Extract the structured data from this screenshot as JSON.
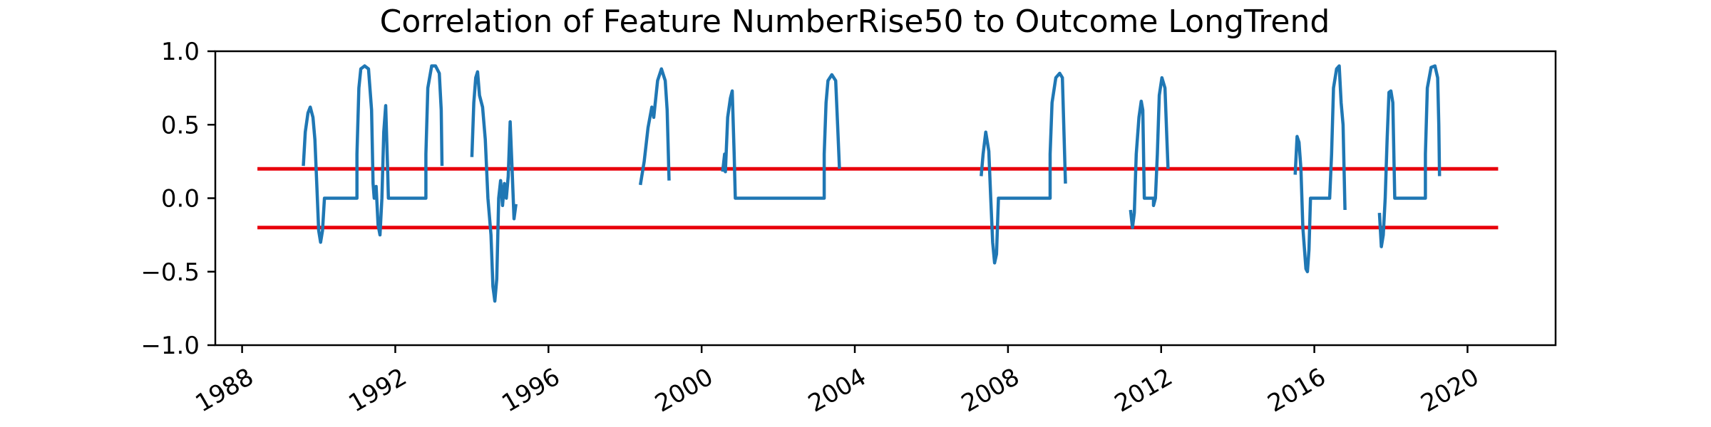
{
  "chart_data": {
    "type": "line",
    "title": "Correlation of Feature NumberRise50 to Outcome LongTrend",
    "xlabel": "",
    "ylabel": "",
    "xlim": [
      1987.3,
      2022.3
    ],
    "ylim": [
      -1.0,
      1.0
    ],
    "x_ticks": [
      1988,
      1992,
      1996,
      2000,
      2004,
      2008,
      2012,
      2016,
      2020
    ],
    "x_tick_labels": [
      "1988",
      "1992",
      "1996",
      "2000",
      "2004",
      "2008",
      "2012",
      "2016",
      "2020"
    ],
    "y_ticks": [
      1.0,
      0.5,
      0.0,
      -0.5,
      -1.0
    ],
    "y_tick_labels": [
      "1.0",
      "0.5",
      "0.0",
      "−0.5",
      "−1.0"
    ],
    "grid": false,
    "threshold_lines": [
      {
        "y": 0.2,
        "x_range": [
          1988.4,
          2020.8
        ],
        "color": "#e8000b"
      },
      {
        "y": -0.2,
        "x_range": [
          1988.4,
          2020.8
        ],
        "color": "#e8000b"
      }
    ],
    "series": [
      {
        "color": "#1f77b4",
        "segments": [
          [
            [
              1989.6,
              0.22
            ],
            [
              1989.65,
              0.45
            ],
            [
              1989.72,
              0.58
            ],
            [
              1989.78,
              0.62
            ],
            [
              1989.85,
              0.55
            ],
            [
              1989.9,
              0.4
            ],
            [
              1989.95,
              0.1
            ],
            [
              1990.0,
              -0.22
            ],
            [
              1990.05,
              -0.3
            ],
            [
              1990.1,
              -0.22
            ],
            [
              1990.15,
              0.0
            ],
            [
              1990.5,
              0.0
            ],
            [
              1991.0,
              0.0
            ],
            [
              1991.0,
              0.3
            ],
            [
              1991.05,
              0.75
            ],
            [
              1991.1,
              0.88
            ],
            [
              1991.2,
              0.9
            ],
            [
              1991.3,
              0.88
            ],
            [
              1991.38,
              0.6
            ],
            [
              1991.42,
              0.1
            ],
            [
              1991.45,
              0.0
            ],
            [
              1991.5,
              0.08
            ],
            [
              1991.55,
              -0.18
            ],
            [
              1991.6,
              -0.25
            ],
            [
              1991.65,
              0.0
            ],
            [
              1991.7,
              0.45
            ],
            [
              1991.75,
              0.63
            ],
            [
              1991.8,
              0.2
            ],
            [
              1991.82,
              0.0
            ],
            [
              1992.3,
              0.0
            ],
            [
              1992.8,
              0.0
            ],
            [
              1992.8,
              0.3
            ],
            [
              1992.85,
              0.75
            ],
            [
              1992.95,
              0.9
            ],
            [
              1993.05,
              0.9
            ],
            [
              1993.15,
              0.85
            ],
            [
              1993.2,
              0.6
            ],
            [
              1993.22,
              0.22
            ]
          ],
          [
            [
              1994.0,
              0.28
            ],
            [
              1994.05,
              0.65
            ],
            [
              1994.1,
              0.82
            ],
            [
              1994.15,
              0.86
            ],
            [
              1994.2,
              0.7
            ],
            [
              1994.28,
              0.62
            ],
            [
              1994.35,
              0.4
            ],
            [
              1994.42,
              0.0
            ],
            [
              1994.5,
              -0.25
            ],
            [
              1994.55,
              -0.6
            ],
            [
              1994.6,
              -0.7
            ],
            [
              1994.65,
              -0.55
            ],
            [
              1994.7,
              0.0
            ],
            [
              1994.75,
              0.12
            ],
            [
              1994.8,
              -0.05
            ],
            [
              1994.85,
              0.1
            ],
            [
              1994.9,
              0.0
            ],
            [
              1994.95,
              0.15
            ],
            [
              1995.0,
              0.52
            ],
            [
              1995.05,
              0.2
            ],
            [
              1995.1,
              -0.14
            ],
            [
              1995.15,
              -0.04
            ]
          ],
          [
            [
              1998.4,
              0.09
            ],
            [
              1998.5,
              0.25
            ],
            [
              1998.6,
              0.48
            ],
            [
              1998.7,
              0.62
            ],
            [
              1998.75,
              0.55
            ],
            [
              1998.85,
              0.8
            ],
            [
              1998.95,
              0.88
            ],
            [
              1999.05,
              0.8
            ],
            [
              1999.1,
              0.6
            ],
            [
              1999.15,
              0.12
            ]
          ],
          [
            [
              2000.55,
              0.18
            ],
            [
              2000.6,
              0.3
            ],
            [
              2000.62,
              0.18
            ],
            [
              2000.68,
              0.55
            ],
            [
              2000.75,
              0.68
            ],
            [
              2000.8,
              0.73
            ],
            [
              2000.85,
              0.3
            ],
            [
              2000.88,
              0.0
            ],
            [
              2001.5,
              0.0
            ],
            [
              2003.2,
              0.0
            ],
            [
              2003.2,
              0.3
            ],
            [
              2003.25,
              0.65
            ],
            [
              2003.3,
              0.8
            ],
            [
              2003.4,
              0.84
            ],
            [
              2003.5,
              0.8
            ],
            [
              2003.55,
              0.5
            ],
            [
              2003.6,
              0.2
            ]
          ],
          [
            [
              2007.3,
              0.15
            ],
            [
              2007.35,
              0.3
            ],
            [
              2007.42,
              0.45
            ],
            [
              2007.5,
              0.32
            ],
            [
              2007.55,
              0.0
            ],
            [
              2007.6,
              -0.3
            ],
            [
              2007.65,
              -0.44
            ],
            [
              2007.7,
              -0.38
            ],
            [
              2007.75,
              0.0
            ],
            [
              2008.5,
              0.0
            ],
            [
              2009.1,
              0.0
            ],
            [
              2009.1,
              0.3
            ],
            [
              2009.15,
              0.65
            ],
            [
              2009.25,
              0.82
            ],
            [
              2009.35,
              0.85
            ],
            [
              2009.42,
              0.82
            ],
            [
              2009.5,
              0.1
            ]
          ],
          [
            [
              2011.2,
              -0.08
            ],
            [
              2011.25,
              -0.2
            ],
            [
              2011.3,
              -0.1
            ],
            [
              2011.35,
              0.3
            ],
            [
              2011.42,
              0.55
            ],
            [
              2011.48,
              0.66
            ],
            [
              2011.52,
              0.6
            ],
            [
              2011.56,
              0.0
            ],
            [
              2011.8,
              0.0
            ],
            [
              2011.8,
              -0.05
            ],
            [
              2011.85,
              0.0
            ],
            [
              2011.9,
              0.3
            ],
            [
              2011.95,
              0.7
            ],
            [
              2012.02,
              0.82
            ],
            [
              2012.1,
              0.75
            ],
            [
              2012.15,
              0.4
            ],
            [
              2012.18,
              0.2
            ]
          ],
          [
            [
              2015.5,
              0.16
            ],
            [
              2015.55,
              0.42
            ],
            [
              2015.6,
              0.38
            ],
            [
              2015.65,
              0.2
            ],
            [
              2015.7,
              -0.2
            ],
            [
              2015.78,
              -0.48
            ],
            [
              2015.82,
              -0.5
            ],
            [
              2015.86,
              -0.35
            ],
            [
              2015.9,
              0.0
            ],
            [
              2016.4,
              0.0
            ],
            [
              2016.45,
              0.3
            ],
            [
              2016.5,
              0.75
            ],
            [
              2016.58,
              0.88
            ],
            [
              2016.65,
              0.9
            ],
            [
              2016.7,
              0.65
            ],
            [
              2016.75,
              0.5
            ],
            [
              2016.8,
              -0.08
            ]
          ],
          [
            [
              2017.7,
              -0.1
            ],
            [
              2017.75,
              -0.33
            ],
            [
              2017.8,
              -0.25
            ],
            [
              2017.85,
              0.0
            ],
            [
              2017.9,
              0.4
            ],
            [
              2017.95,
              0.72
            ],
            [
              2018.0,
              0.73
            ],
            [
              2018.05,
              0.65
            ],
            [
              2018.1,
              0.0
            ],
            [
              2018.9,
              0.0
            ],
            [
              2018.9,
              0.3
            ],
            [
              2018.95,
              0.75
            ],
            [
              2019.05,
              0.89
            ],
            [
              2019.15,
              0.9
            ],
            [
              2019.22,
              0.82
            ],
            [
              2019.25,
              0.5
            ],
            [
              2019.27,
              0.15
            ]
          ]
        ]
      }
    ]
  }
}
